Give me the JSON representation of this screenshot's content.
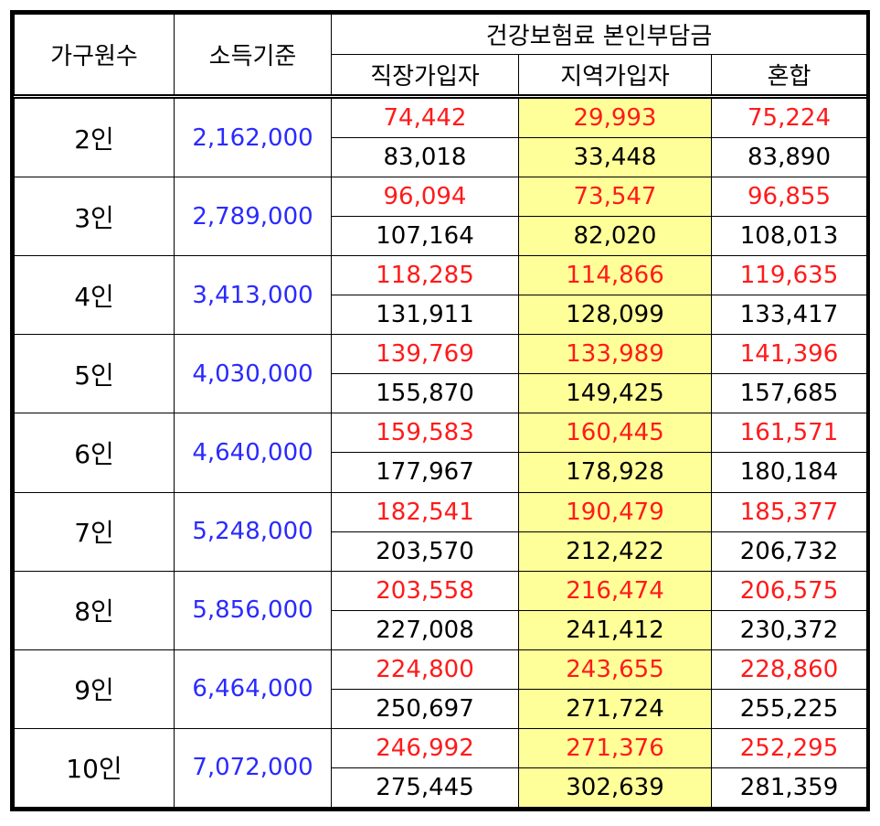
{
  "headers": {
    "household_size": "가구원수",
    "income_standard": "소득기준",
    "premium_group": "건강보험료 본인부담금",
    "employee": "직장가입자",
    "regional": "지역가입자",
    "mixed": "혼합"
  },
  "colors": {
    "income_text": "#2a2aff",
    "first_line_text": "#ff1a1a",
    "regional_highlight": "#ffff99"
  },
  "rows": [
    {
      "size": "2인",
      "income": "2,162,000",
      "a": {
        "employee": "74,442",
        "regional": "29,993",
        "mixed": "75,224"
      },
      "b": {
        "employee": "83,018",
        "regional": "33,448",
        "mixed": "83,890"
      }
    },
    {
      "size": "3인",
      "income": "2,789,000",
      "a": {
        "employee": "96,094",
        "regional": "73,547",
        "mixed": "96,855"
      },
      "b": {
        "employee": "107,164",
        "regional": "82,020",
        "mixed": "108,013"
      }
    },
    {
      "size": "4인",
      "income": "3,413,000",
      "a": {
        "employee": "118,285",
        "regional": "114,866",
        "mixed": "119,635"
      },
      "b": {
        "employee": "131,911",
        "regional": "128,099",
        "mixed": "133,417"
      }
    },
    {
      "size": "5인",
      "income": "4,030,000",
      "a": {
        "employee": "139,769",
        "regional": "133,989",
        "mixed": "141,396"
      },
      "b": {
        "employee": "155,870",
        "regional": "149,425",
        "mixed": "157,685"
      }
    },
    {
      "size": "6인",
      "income": "4,640,000",
      "a": {
        "employee": "159,583",
        "regional": "160,445",
        "mixed": "161,571"
      },
      "b": {
        "employee": "177,967",
        "regional": "178,928",
        "mixed": "180,184"
      }
    },
    {
      "size": "7인",
      "income": "5,248,000",
      "a": {
        "employee": "182,541",
        "regional": "190,479",
        "mixed": "185,377"
      },
      "b": {
        "employee": "203,570",
        "regional": "212,422",
        "mixed": "206,732"
      }
    },
    {
      "size": "8인",
      "income": "5,856,000",
      "a": {
        "employee": "203,558",
        "regional": "216,474",
        "mixed": "206,575"
      },
      "b": {
        "employee": "227,008",
        "regional": "241,412",
        "mixed": "230,372"
      }
    },
    {
      "size": "9인",
      "income": "6,464,000",
      "a": {
        "employee": "224,800",
        "regional": "243,655",
        "mixed": "228,860"
      },
      "b": {
        "employee": "250,697",
        "regional": "271,724",
        "mixed": "255,225"
      }
    },
    {
      "size": "10인",
      "income": "7,072,000",
      "a": {
        "employee": "246,992",
        "regional": "271,376",
        "mixed": "252,295"
      },
      "b": {
        "employee": "275,445",
        "regional": "302,639",
        "mixed": "281,359"
      }
    }
  ]
}
